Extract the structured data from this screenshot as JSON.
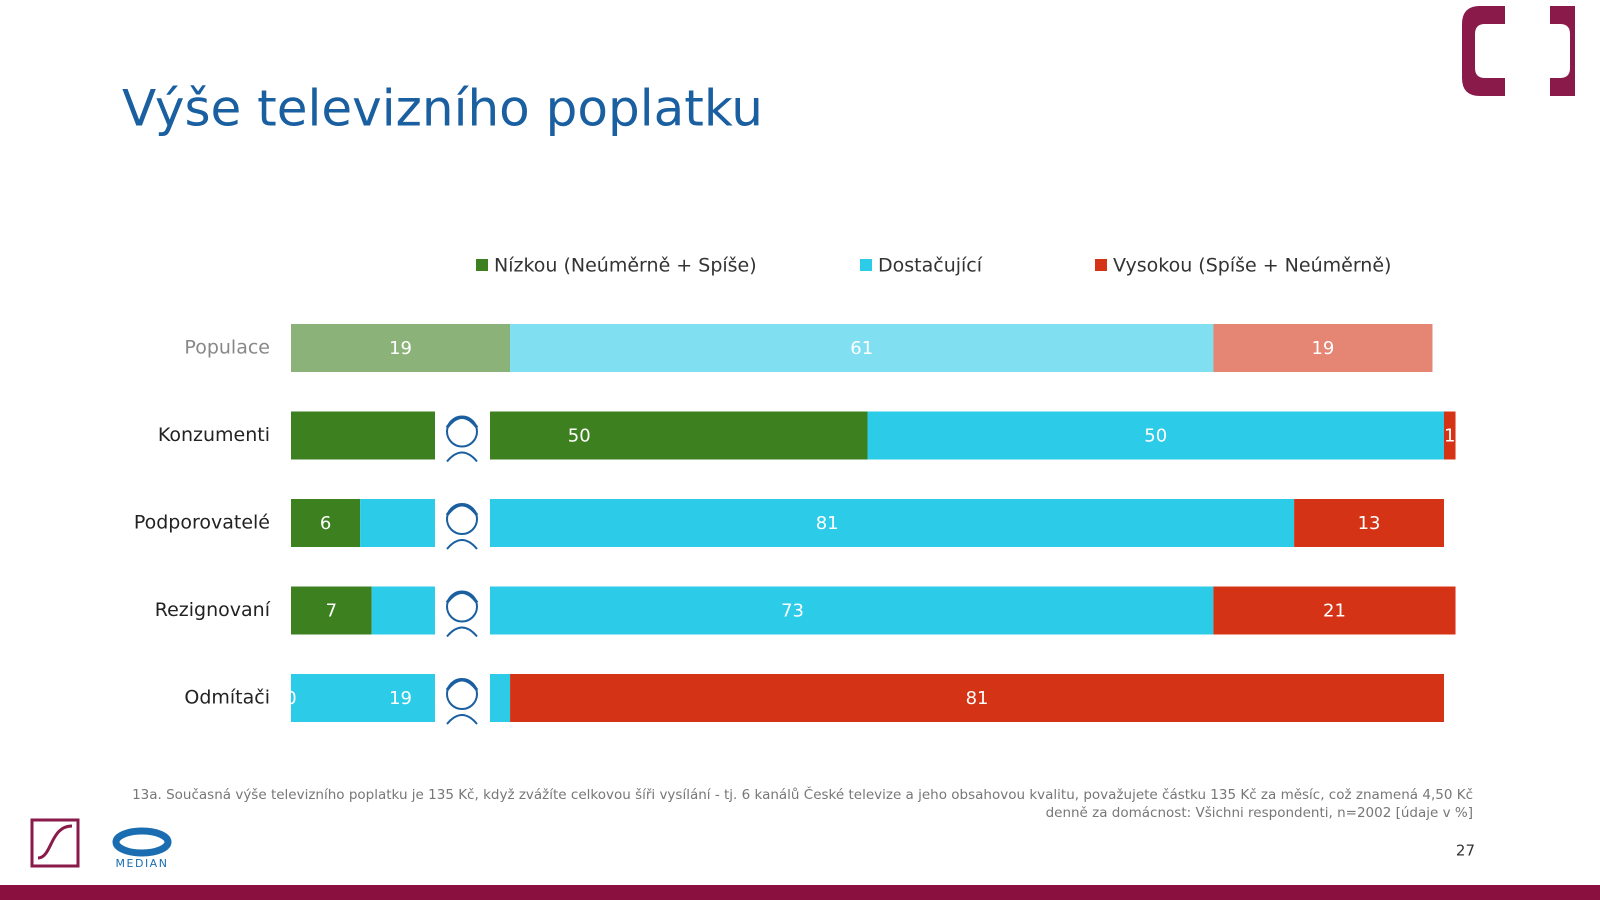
{
  "chart_data": {
    "type": "stacked-barh",
    "title": "Výše televizního poplatku",
    "categories": [
      "Populace",
      "Konzumenti",
      "Podporovatelé",
      "Rezignovaní",
      "Odmítači"
    ],
    "series": [
      {
        "name": "Nízkou (Neúměrně + Spíše)",
        "color": "#3d8020",
        "values": [
          19,
          50,
          6,
          7,
          0
        ]
      },
      {
        "name": "Dostačující",
        "color": "#2ccbe8",
        "values": [
          61,
          50,
          81,
          73,
          19
        ]
      },
      {
        "name": "Vysokou (Spíše + Neúměrně)",
        "color": "#d43315",
        "values": [
          19,
          1,
          13,
          21,
          81
        ]
      }
    ],
    "xlim": [
      0,
      100
    ],
    "note": "13a. Současná výše televizního poplatku je 135 Kč, když zvážíte celkovou šíři vysílání - tj. 6 kanálů České televize a jeho obsahovou kvalitu, považujete částku 135 Kč za měsíc, což znamená 4,50 Kč denně za domácnost: Všichni respondenti, n=2002 [údaje v %]"
  },
  "footer": {
    "page": 27,
    "brand": "MEDIAN"
  }
}
